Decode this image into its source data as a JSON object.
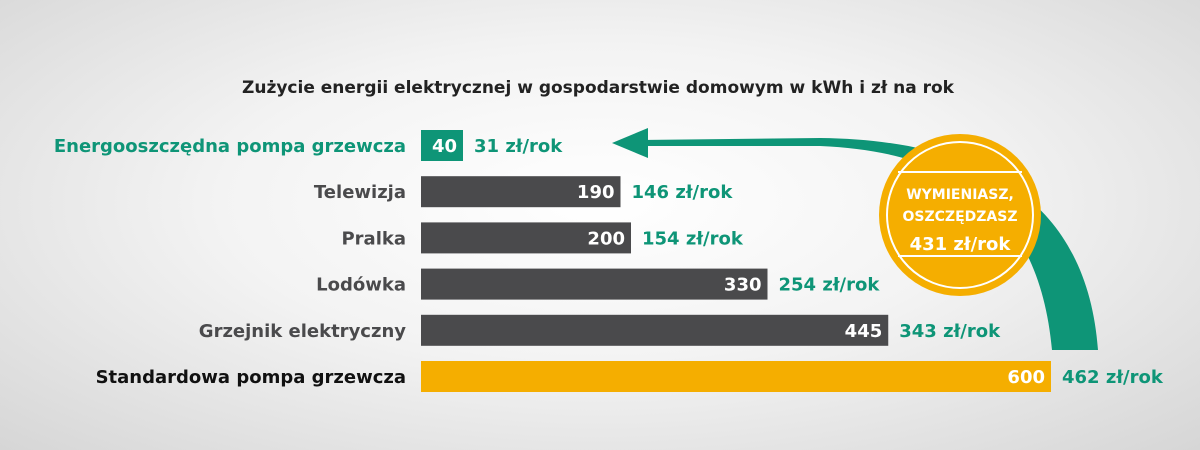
{
  "colors": {
    "green": "#0e9577",
    "dark": "#4a4a4c",
    "yellow": "#f5ae00",
    "label_dark": "#4a4a4c",
    "label_black": "#111111",
    "badge_fill": "#f5ae00",
    "badge_ring": "#ffffff"
  },
  "chart_data": {
    "type": "bar",
    "orientation": "horizontal",
    "title": "Zużycie energii elektrycznej w gospodarstwie domowym w kWh i zł na rok",
    "xlim": [
      0,
      600
    ],
    "categories": [
      "Energooszczędna pompa grzewcza",
      "Telewizja",
      "Pralka",
      "Lodówka",
      "Grzejnik elektryczny",
      "Standardowa pompa grzewcza"
    ],
    "values": [
      40,
      190,
      200,
      330,
      445,
      600
    ],
    "value_labels": [
      "40",
      "190",
      "200",
      "330",
      "445",
      "600"
    ],
    "costs": [
      "31 zł/rok",
      "146 zł/rok",
      "154 zł/rok",
      "254 zł/rok",
      "343 zł/rok",
      "462 zł/rok"
    ],
    "bar_colors": [
      "green",
      "dark",
      "dark",
      "dark",
      "dark",
      "yellow"
    ],
    "label_colors": [
      "green",
      "label_dark",
      "label_dark",
      "label_dark",
      "label_dark",
      "label_black"
    ],
    "annotation": {
      "lines": [
        "WYMIENIASZ,",
        "OSZCZĘDZASZ",
        "431 zł/rok"
      ]
    }
  }
}
